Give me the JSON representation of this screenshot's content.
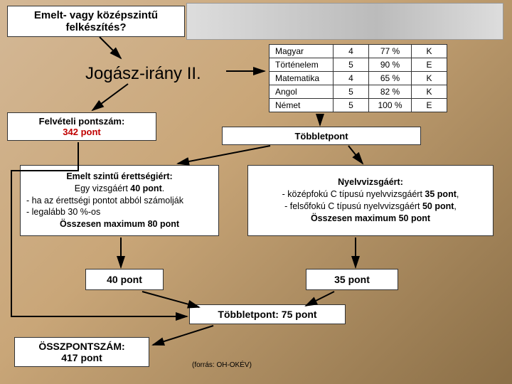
{
  "title": "Emelt- vagy középszintű felkészítés?",
  "main_title": "Jogász-irány II.",
  "subjects": {
    "rows": [
      {
        "name": "Magyar",
        "grade": "4",
        "pct": "77 %",
        "lvl": "K"
      },
      {
        "name": "Történelem",
        "grade": "5",
        "pct": "90 %",
        "lvl": "E"
      },
      {
        "name": "Matematika",
        "grade": "4",
        "pct": "65 %",
        "lvl": "K"
      },
      {
        "name": "Angol",
        "grade": "5",
        "pct": "82 %",
        "lvl": "K"
      },
      {
        "name": "Német",
        "grade": "5",
        "pct": "100 %",
        "lvl": "E"
      }
    ]
  },
  "felveteli": {
    "l1": "Felvételi pontszám:",
    "l2": "342 pont"
  },
  "tobbletpont_label": "Többletpont",
  "emelt": {
    "title": "Emelt szintű érettségiért:",
    "l1a": "Egy vizsgáért ",
    "l1b": "40 pont",
    "l1c": ".",
    "l2": "- ha az érettségi pontot abból számolják",
    "l3": "- legalább 30 %-os",
    "l4": "Összesen maximum 80 pont"
  },
  "nyelv": {
    "title": "Nyelvvizsgáért:",
    "l1a": "- középfokú C típusú nyelvvizsgáért ",
    "l1b": "35 pont",
    "l1c": ",",
    "l2a": "- felsőfokú C típusú nyelvvizsgáért ",
    "l2b": "50 pont",
    "l2c": ",",
    "l3": "Összesen maximum 50 pont"
  },
  "p40": "40 pont",
  "p35": "35 pont",
  "tp75": "Többletpont: 75 pont",
  "ossz": {
    "l1": "ÖSSZPONTSZÁM:",
    "l2": "417 pont"
  },
  "forras": "(forrás: OH-OKÉV)",
  "colors": {
    "red": "#c00000",
    "box_bg": "#ffffff",
    "border": "#333333",
    "arrow": "#000000"
  }
}
